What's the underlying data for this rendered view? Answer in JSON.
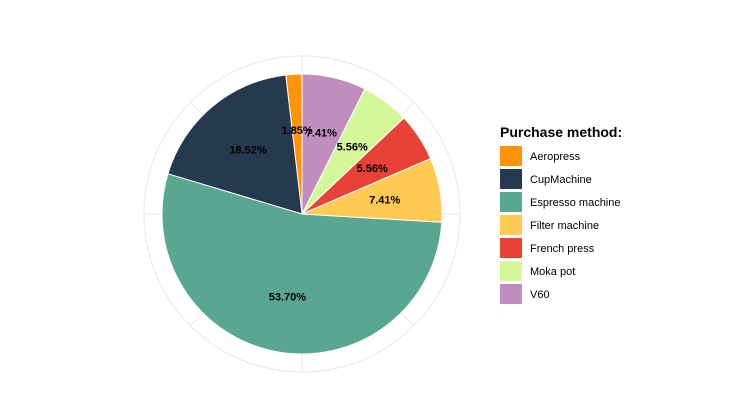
{
  "chart_data": {
    "type": "pie",
    "legend_title": "Purchase method:",
    "legend_position": "right",
    "grid": true,
    "slices": [
      {
        "label": "Aeropress",
        "value": 1.85,
        "display": "1.85%",
        "color": "#FF9407"
      },
      {
        "label": "CupMachine",
        "value": 18.52,
        "display": "18.52%",
        "color": "#263A4F"
      },
      {
        "label": "Espresso machine",
        "value": 53.7,
        "display": "53.70%",
        "color": "#5AA791"
      },
      {
        "label": "Filter machine",
        "value": 7.41,
        "display": "7.41%",
        "color": "#FECA52"
      },
      {
        "label": "French press",
        "value": 5.56,
        "display": "5.56%",
        "color": "#E84236"
      },
      {
        "label": "Moka pot",
        "value": 5.56,
        "display": "5.56%",
        "color": "#D4F799"
      },
      {
        "label": "V60",
        "value": 7.41,
        "display": "7.41%",
        "color": "#BF8EBF"
      }
    ]
  }
}
